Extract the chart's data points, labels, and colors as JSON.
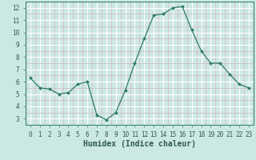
{
  "x": [
    0,
    1,
    2,
    3,
    4,
    5,
    6,
    7,
    8,
    9,
    10,
    11,
    12,
    13,
    14,
    15,
    16,
    17,
    18,
    19,
    20,
    21,
    22,
    23
  ],
  "y": [
    6.3,
    5.5,
    5.4,
    5.0,
    5.1,
    5.8,
    6.0,
    3.3,
    2.9,
    3.5,
    5.3,
    7.5,
    9.5,
    11.4,
    11.5,
    12.0,
    12.1,
    10.2,
    8.5,
    7.5,
    7.5,
    6.6,
    5.8,
    5.5
  ],
  "xlabel": "Humidex (Indice chaleur)",
  "line_color": "#2d7a65",
  "marker": "D",
  "marker_size": 2.0,
  "bg_color": "#cce8e4",
  "minor_grid_color": "#d4b8b8",
  "major_grid_color": "#ffffff",
  "xlim": [
    -0.5,
    23.5
  ],
  "ylim": [
    2.5,
    12.5
  ],
  "xticks": [
    0,
    1,
    2,
    3,
    4,
    5,
    6,
    7,
    8,
    9,
    10,
    11,
    12,
    13,
    14,
    15,
    16,
    17,
    18,
    19,
    20,
    21,
    22,
    23
  ],
  "yticks": [
    3,
    4,
    5,
    6,
    7,
    8,
    9,
    10,
    11,
    12
  ],
  "tick_color": "#2d7a65",
  "label_color": "#2d5a50",
  "tick_fontsize": 5.5,
  "xlabel_fontsize": 7.0
}
